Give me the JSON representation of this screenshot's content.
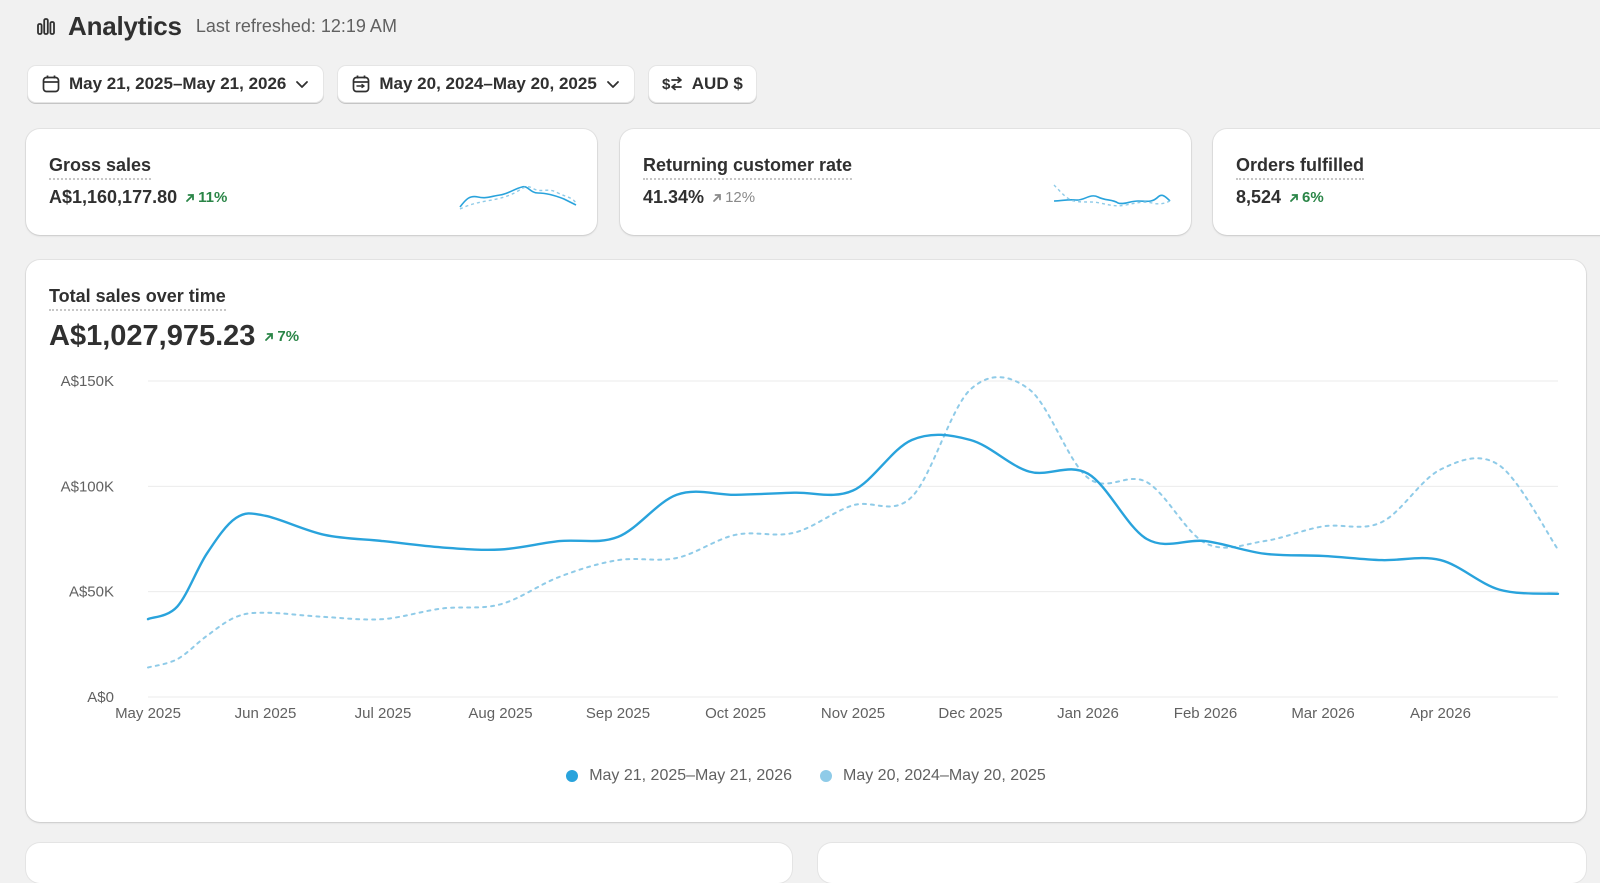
{
  "header": {
    "title": "Analytics",
    "last_refreshed": "Last refreshed: 12:19 AM",
    "icon": "bar-chart-icon"
  },
  "filters": {
    "current_range": "May 21, 2025–May 21, 2026",
    "compare_range": "May 20, 2024–May 20, 2025",
    "currency": "AUD $"
  },
  "metrics": [
    {
      "title": "Gross sales",
      "value": "A$1,160,177.80",
      "delta": "11%",
      "trend": "up"
    },
    {
      "title": "Returning customer rate",
      "value": "41.34%",
      "delta": "12%",
      "trend": "neutral"
    },
    {
      "title": "Orders fulfilled",
      "value": "8,524",
      "delta": "6%",
      "trend": "up"
    }
  ],
  "chart_card": {
    "title": "Total sales over time",
    "total": "A$1,027,975.23",
    "delta": "7%"
  },
  "colors": {
    "current_series": "#29a3dc",
    "previous_series": "#8fcbe8",
    "positive": "#2a8547",
    "gridline": "#ebebeb"
  },
  "chart_data": {
    "type": "line",
    "title": "Total sales over time",
    "x": [
      0,
      0.25,
      0.5,
      0.75,
      1,
      1.5,
      2,
      2.5,
      3,
      3.5,
      4,
      4.5,
      5,
      5.5,
      6,
      6.5,
      7,
      7.5,
      8,
      8.5,
      9,
      9.5,
      10,
      10.5,
      11,
      11.5,
      12
    ],
    "categories": [
      "May 2025",
      "Jun 2025",
      "Jul 2025",
      "Aug 2025",
      "Sep 2025",
      "Oct 2025",
      "Nov 2025",
      "Dec 2025",
      "Jan 2026",
      "Feb 2026",
      "Mar 2026",
      "Apr 2026"
    ],
    "ylim": [
      0,
      150000
    ],
    "y_ticks": [
      "A$0",
      "A$50K",
      "A$100K",
      "A$150K"
    ],
    "grid": true,
    "legend_position": "bottom-center",
    "series": [
      {
        "name": "May 21, 2025–May 21, 2026",
        "style": "solid",
        "values": [
          37000,
          43000,
          68000,
          85000,
          86000,
          77000,
          74000,
          71000,
          70000,
          74000,
          76000,
          96000,
          96000,
          97000,
          98000,
          122000,
          122000,
          107000,
          106000,
          75000,
          74000,
          68000,
          67000,
          65000,
          65000,
          51000,
          49000
        ]
      },
      {
        "name": "May 20, 2024–May 20, 2025",
        "style": "dashed",
        "values": [
          14000,
          18000,
          29000,
          38000,
          40000,
          38000,
          37000,
          42000,
          44000,
          57000,
          65000,
          66000,
          77000,
          78000,
          91000,
          95000,
          146000,
          146000,
          104000,
          102000,
          73000,
          74000,
          81000,
          83000,
          108000,
          110000,
          70000
        ]
      }
    ]
  }
}
